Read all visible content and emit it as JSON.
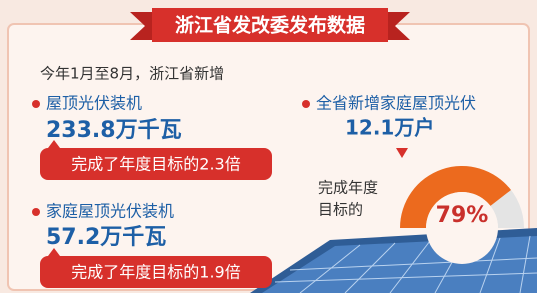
{
  "header": {
    "title": "浙江省发改委发布数据"
  },
  "intro": "今年1月至8月，浙江省新增",
  "items": [
    {
      "label": "屋顶光伏装机",
      "value": "233.8万千瓦",
      "note": "完成了年度目标的2.3倍"
    },
    {
      "label": "家庭屋顶光伏装机",
      "value": "57.2万千瓦",
      "note": "完成了年度目标的1.9倍"
    }
  ],
  "households": {
    "label": "全省新增家庭屋顶光伏",
    "value": "12.1万户"
  },
  "gauge": {
    "lines": [
      "完成年度",
      "目标的"
    ],
    "value": 79,
    "value_label": "79%"
  }
}
